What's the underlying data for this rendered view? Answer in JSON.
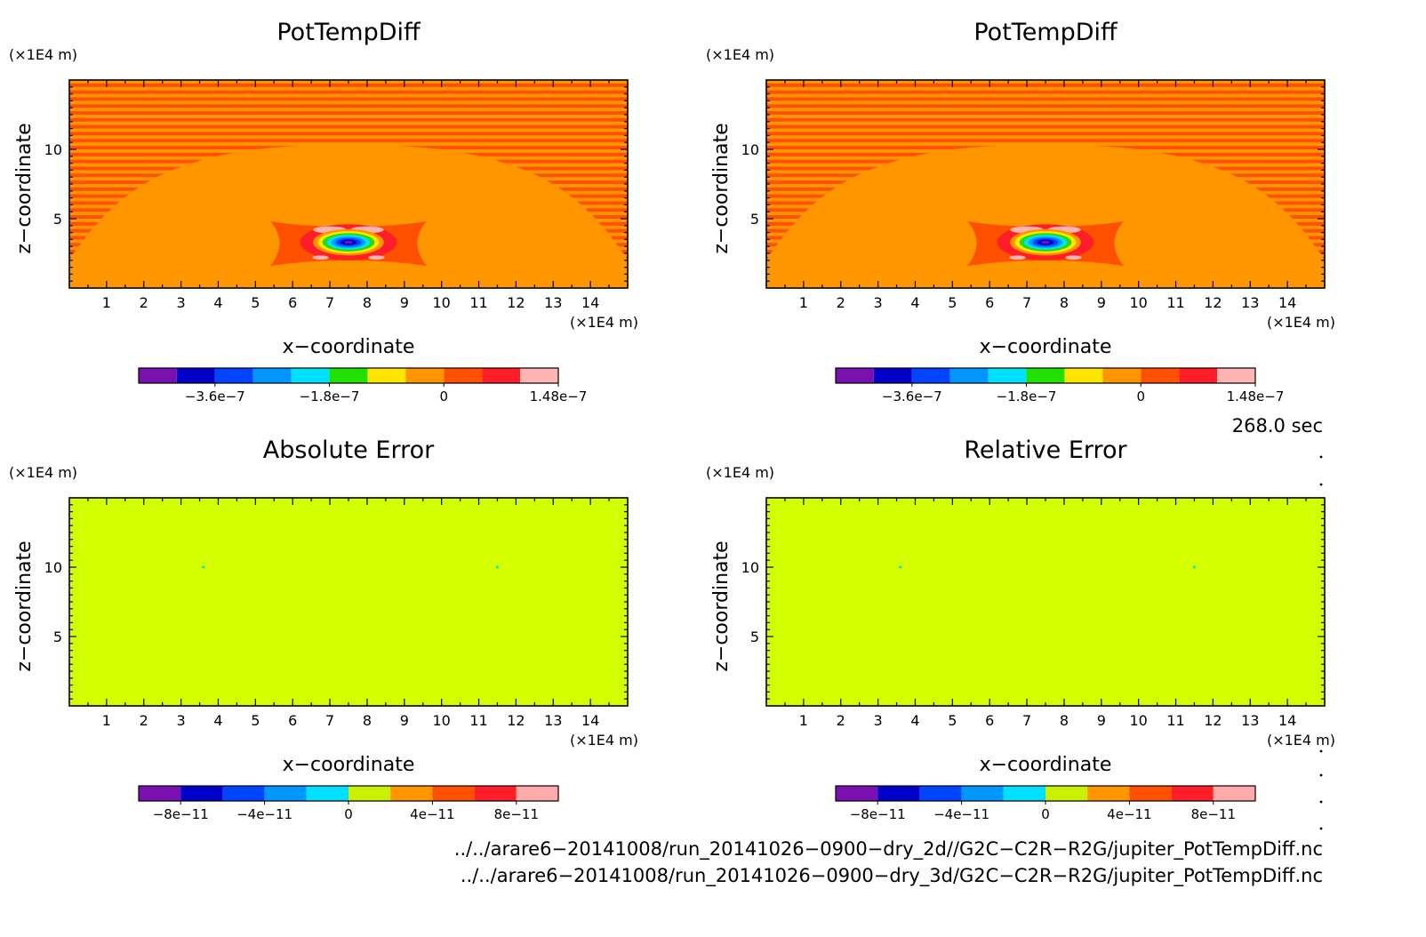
{
  "panels": [
    {
      "title": "PotTempDiff",
      "kind": "field",
      "z_unit": "(×1E4 m)",
      "x_unit": "(×1E4 m)",
      "xlabel": "x−coordinate",
      "ylabel": "z−coordinate",
      "xlim": [
        0,
        15
      ],
      "ylim": [
        0,
        15
      ],
      "x_ticks": [
        "1",
        "2",
        "3",
        "4",
        "5",
        "6",
        "7",
        "8",
        "9",
        "10",
        "11",
        "12",
        "13",
        "14"
      ],
      "y_ticks": [
        "5",
        "10"
      ],
      "colorbar": {
        "colors": [
          "#7a10b0",
          "#0000c8",
          "#0044ff",
          "#0096ff",
          "#00e0ff",
          "#22e000",
          "#ffe400",
          "#ff9600",
          "#ff5000",
          "#ff1e28",
          "#ffb4b4"
        ],
        "labels": [
          "−3.6e−7",
          "−1.8e−7",
          "0",
          "1.48e−7"
        ],
        "label_at": [
          2,
          5,
          8,
          11
        ]
      },
      "anomaly_center": [
        7.5,
        3.3
      ]
    },
    {
      "title": "PotTempDiff",
      "kind": "field",
      "z_unit": "(×1E4 m)",
      "x_unit": "(×1E4 m)",
      "xlabel": "x−coordinate",
      "ylabel": "z−coordinate",
      "xlim": [
        0,
        15
      ],
      "ylim": [
        0,
        15
      ],
      "x_ticks": [
        "1",
        "2",
        "3",
        "4",
        "5",
        "6",
        "7",
        "8",
        "9",
        "10",
        "11",
        "12",
        "13",
        "14"
      ],
      "y_ticks": [
        "5",
        "10"
      ],
      "colorbar": {
        "colors": [
          "#7a10b0",
          "#0000c8",
          "#0044ff",
          "#0096ff",
          "#00e0ff",
          "#22e000",
          "#ffe400",
          "#ff9600",
          "#ff5000",
          "#ff1e28",
          "#ffb4b4"
        ],
        "labels": [
          "−3.6e−7",
          "−1.8e−7",
          "0",
          "1.48e−7"
        ],
        "label_at": [
          2,
          5,
          8,
          11
        ]
      },
      "anomaly_center": [
        7.5,
        3.3
      ]
    },
    {
      "title": "Absolute Error",
      "kind": "uniform",
      "fill_color": "#d4ff00",
      "dots": [
        [
          3.6,
          10
        ],
        [
          11.5,
          10
        ]
      ],
      "z_unit": "(×1E4 m)",
      "x_unit": "(×1E4 m)",
      "xlabel": "x−coordinate",
      "ylabel": "z−coordinate",
      "xlim": [
        0,
        15
      ],
      "ylim": [
        0,
        15
      ],
      "x_ticks": [
        "1",
        "2",
        "3",
        "4",
        "5",
        "6",
        "7",
        "8",
        "9",
        "10",
        "11",
        "12",
        "13",
        "14"
      ],
      "y_ticks": [
        "5",
        "10"
      ],
      "colorbar": {
        "colors": [
          "#7a10b0",
          "#0000c8",
          "#0044ff",
          "#0096ff",
          "#00e0ff",
          "#c8f000",
          "#ff9600",
          "#ff5000",
          "#ff1e28",
          "#ffaaaa"
        ],
        "labels": [
          "−8e−11",
          "−4e−11",
          "0",
          "4e−11",
          "8e−11"
        ],
        "label_at": [
          1,
          3,
          5,
          7,
          9
        ]
      }
    },
    {
      "title": "Relative Error",
      "kind": "uniform",
      "fill_color": "#d4ff00",
      "dots": [
        [
          3.6,
          10
        ],
        [
          11.5,
          10
        ]
      ],
      "z_unit": "(×1E4 m)",
      "x_unit": "(×1E4 m)",
      "xlabel": "x−coordinate",
      "ylabel": "z−coordinate",
      "xlim": [
        0,
        15
      ],
      "ylim": [
        0,
        15
      ],
      "x_ticks": [
        "1",
        "2",
        "3",
        "4",
        "5",
        "6",
        "7",
        "8",
        "9",
        "10",
        "11",
        "12",
        "13",
        "14"
      ],
      "y_ticks": [
        "5",
        "10"
      ],
      "colorbar": {
        "colors": [
          "#7a10b0",
          "#0000c8",
          "#0044ff",
          "#0096ff",
          "#00e0ff",
          "#c8f000",
          "#ff9600",
          "#ff5000",
          "#ff1e28",
          "#ffaaaa"
        ],
        "labels": [
          "−8e−11",
          "−4e−11",
          "0",
          "4e−11",
          "8e−11"
        ],
        "label_at": [
          1,
          3,
          5,
          7,
          9
        ]
      }
    }
  ],
  "time_label": "268.0 sec",
  "file_paths": [
    "../../arare6−20141008/run_20141026−0900−dry_2d//G2C−C2R−R2G/jupiter_PotTempDiff.nc",
    "../../arare6−20141008/run_20141026−0900−dry_3d/G2C−C2R−R2G/jupiter_PotTempDiff.nc"
  ],
  "chart_data": [
    {
      "type": "heatmap",
      "title": "PotTempDiff",
      "xlabel": "x−coordinate",
      "ylabel": "z−coordinate",
      "xlim": [
        0,
        15
      ],
      "ylim": [
        0,
        15
      ],
      "colorbar_labels": [
        "−3.6e−7",
        "−1.8e−7",
        "0",
        "1.48e−7"
      ]
    },
    {
      "type": "heatmap",
      "title": "PotTempDiff",
      "xlabel": "x−coordinate",
      "ylabel": "z−coordinate",
      "xlim": [
        0,
        15
      ],
      "ylim": [
        0,
        15
      ],
      "colorbar_labels": [
        "−3.6e−7",
        "−1.8e−7",
        "0",
        "1.48e−7"
      ]
    },
    {
      "type": "heatmap",
      "title": "Absolute Error",
      "xlabel": "x−coordinate",
      "ylabel": "z−coordinate",
      "xlim": [
        0,
        15
      ],
      "ylim": [
        0,
        15
      ],
      "colorbar_labels": [
        "−8e−11",
        "−4e−11",
        "0",
        "4e−11",
        "8e−11"
      ]
    },
    {
      "type": "heatmap",
      "title": "Relative Error",
      "xlabel": "x−coordinate",
      "ylabel": "z−coordinate",
      "xlim": [
        0,
        15
      ],
      "ylim": [
        0,
        15
      ],
      "colorbar_labels": [
        "−8e−11",
        "−4e−11",
        "0",
        "4e−11",
        "8e−11"
      ]
    }
  ]
}
